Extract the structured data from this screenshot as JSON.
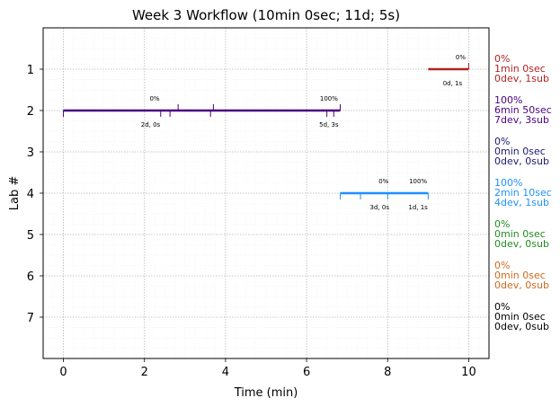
{
  "chart_data": {
    "type": "gantt",
    "title": "Week 3 Workflow (10min 0sec; 11d; 5s)",
    "xlabel": "Time (min)",
    "ylabel": "Lab #",
    "xlim": [
      -0.5,
      10.5
    ],
    "ylim": [
      8,
      0
    ],
    "xticks": [
      0,
      2,
      4,
      6,
      8,
      10
    ],
    "yticks": [
      1,
      2,
      3,
      4,
      5,
      6,
      7
    ],
    "grid": true,
    "labs": [
      {
        "lab": 1,
        "color": "#b22222",
        "start": 9.0,
        "end": 10.0,
        "ticks_up": [
          10.0
        ],
        "ticks_down": [],
        "annotations": [
          {
            "text": "0%",
            "x": 9.8,
            "pos": "above"
          },
          {
            "text": "0d, 1s",
            "x": 9.6,
            "pos": "below"
          }
        ],
        "summary": [
          "0%",
          "1min 0sec",
          "0dev, 1sub"
        ]
      },
      {
        "lab": 2,
        "color": "#4b0082",
        "start": 0.0,
        "end": 6.83,
        "ticks_up": [
          2.83,
          3.7,
          6.83
        ],
        "ticks_down": [
          0.0,
          2.4,
          2.63,
          3.63,
          6.5,
          6.67
        ],
        "annotations": [
          {
            "text": "0%",
            "x": 2.25,
            "pos": "above"
          },
          {
            "text": "2d, 0s",
            "x": 2.15,
            "pos": "below"
          },
          {
            "text": "100%",
            "x": 6.55,
            "pos": "above"
          },
          {
            "text": "5d, 3s",
            "x": 6.55,
            "pos": "below"
          }
        ],
        "summary": [
          "100%",
          "6min 50sec",
          "7dev, 3sub"
        ]
      },
      {
        "lab": 3,
        "color": "#191970",
        "start": null,
        "end": null,
        "ticks_up": [],
        "ticks_down": [],
        "annotations": [],
        "summary": [
          "0%",
          "0min 0sec",
          "0dev, 0sub"
        ]
      },
      {
        "lab": 4,
        "color": "#1e90ff",
        "start": 6.83,
        "end": 9.0,
        "ticks_up": [],
        "ticks_down": [
          6.83,
          7.33,
          8.0,
          9.0
        ],
        "annotations": [
          {
            "text": "0%",
            "x": 7.9,
            "pos": "above"
          },
          {
            "text": "3d, 0s",
            "x": 7.8,
            "pos": "below"
          },
          {
            "text": "100%",
            "x": 8.75,
            "pos": "above"
          },
          {
            "text": "1d, 1s",
            "x": 8.75,
            "pos": "below"
          }
        ],
        "summary": [
          "100%",
          "2min 10sec",
          "4dev, 1sub"
        ]
      },
      {
        "lab": 5,
        "color": "#228b22",
        "start": null,
        "end": null,
        "ticks_up": [],
        "ticks_down": [],
        "annotations": [],
        "summary": [
          "0%",
          "0min 0sec",
          "0dev, 0sub"
        ]
      },
      {
        "lab": 6,
        "color": "#d2691e",
        "start": null,
        "end": null,
        "ticks_up": [],
        "ticks_down": [],
        "annotations": [],
        "summary": [
          "0%",
          "0min 0sec",
          "0dev, 0sub"
        ]
      },
      {
        "lab": 7,
        "color": "#000000",
        "start": null,
        "end": null,
        "ticks_up": [],
        "ticks_down": [],
        "annotations": [],
        "summary": [
          "0%",
          "0min 0sec",
          "0dev, 0sub"
        ]
      }
    ]
  }
}
